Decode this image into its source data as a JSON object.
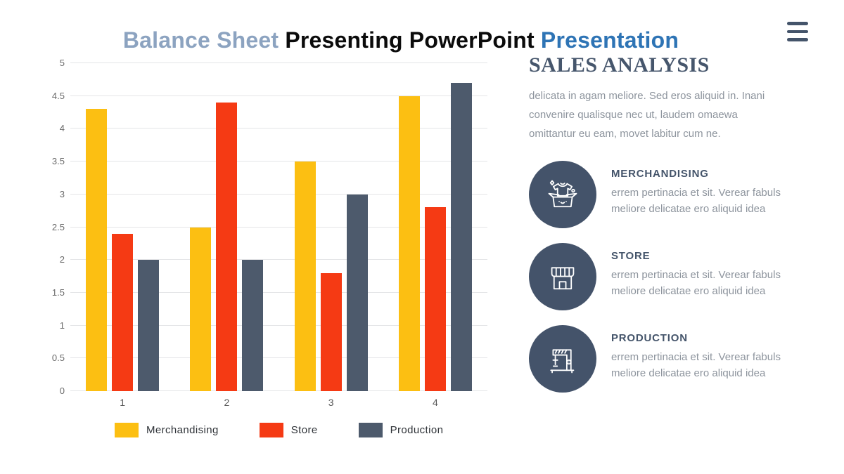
{
  "header": {
    "title_part1": "Balance Sheet ",
    "title_part2": "Presenting PowerPoint ",
    "title_part3": "Presentation",
    "menu_icon": "hamburger"
  },
  "colors": {
    "title_muted_blue": "#8CA3C0",
    "title_black": "#0B0B0B",
    "title_blue": "#2E74B5",
    "slate": "#44546A",
    "body_gray": "#8D949D",
    "gridline": "#E4E5E7",
    "merchandising": "#FCBF12",
    "store": "#F53A14",
    "production": "#4D5A6C"
  },
  "chart_data": {
    "type": "bar",
    "categories": [
      "1",
      "2",
      "3",
      "4"
    ],
    "series": [
      {
        "name": "Merchandising",
        "color": "#FCBF12",
        "values": [
          4.3,
          2.5,
          3.5,
          4.5
        ]
      },
      {
        "name": "Store",
        "color": "#F53A14",
        "values": [
          2.4,
          4.4,
          1.8,
          2.8
        ]
      },
      {
        "name": "Production",
        "color": "#4D5A6C",
        "values": [
          2.0,
          2.0,
          3.0,
          4.7
        ]
      }
    ],
    "title": "",
    "xlabel": "",
    "ylabel": "",
    "ylim": [
      0,
      5
    ],
    "ytick_step": 0.5,
    "grid": true,
    "legend_position": "bottom"
  },
  "panel": {
    "heading": "SALES ANALYSIS",
    "intro": "delicata in agam meliore. Sed eros aliquid in. Inani\nconvenire qualisque nec ut, laudem omaewa\nomittantur eu eam, movet labitur cum ne.",
    "items": [
      {
        "icon": "merchandising-box-icon",
        "title": "MERCHANDISING",
        "desc": "errem pertinacia et sit. Verear fabuls\nmeliore delicatae ero aliquid idea"
      },
      {
        "icon": "storefront-icon",
        "title": "STORE",
        "desc": "errem pertinacia et sit. Verear fabuls\nmeliore delicatae ero aliquid idea"
      },
      {
        "icon": "sewing-machine-icon",
        "title": "PRODUCTION",
        "desc": "errem pertinacia et sit. Verear fabuls\nmeliore delicatae ero aliquid idea"
      }
    ]
  }
}
